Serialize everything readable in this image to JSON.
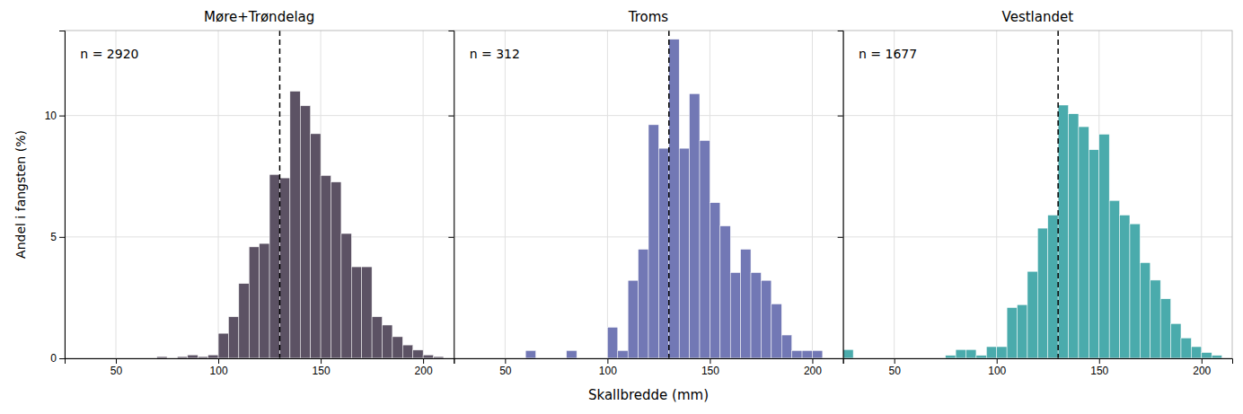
{
  "chart_data": [
    {
      "type": "histogram",
      "title": "Møre+Trøndelag",
      "annotation": "n = 2920",
      "color": "#5c5264",
      "ylabel": "Andel i fangsten (%)",
      "bins": [
        70,
        75,
        80,
        85,
        90,
        95,
        100,
        105,
        110,
        115,
        120,
        125,
        130,
        135,
        140,
        145,
        150,
        155,
        160,
        165,
        170,
        175,
        180,
        185,
        190,
        195,
        200,
        205,
        210
      ],
      "values": [
        0.07,
        0.0,
        0.07,
        0.14,
        0.07,
        0.14,
        1.03,
        1.71,
        3.08,
        4.59,
        4.73,
        7.57,
        7.43,
        11.0,
        10.4,
        9.25,
        7.53,
        7.26,
        5.14,
        3.77,
        3.77,
        1.71,
        1.37,
        0.89,
        0.55,
        0.34,
        0.14,
        0.07
      ],
      "vline_x": 130,
      "xlim": [
        25,
        215
      ],
      "xticks": [
        50,
        100,
        150,
        200
      ],
      "ylim": [
        0,
        13.5
      ],
      "yticks": [
        0,
        5,
        10
      ],
      "grid": true
    },
    {
      "type": "histogram",
      "title": "Troms",
      "annotation": "n = 312",
      "color": "#7278b5",
      "xlabel": "Skallbredde (mm)",
      "bins": [
        60,
        65,
        70,
        75,
        80,
        85,
        90,
        95,
        100,
        105,
        110,
        115,
        120,
        125,
        130,
        135,
        140,
        145,
        150,
        155,
        160,
        165,
        170,
        175,
        180,
        185,
        190,
        195,
        200,
        205
      ],
      "values": [
        0.32,
        0.0,
        0.0,
        0.0,
        0.32,
        0.0,
        0.0,
        0.0,
        1.28,
        0.32,
        3.21,
        4.49,
        9.62,
        8.65,
        13.14,
        8.65,
        10.9,
        8.97,
        6.41,
        5.45,
        3.53,
        4.49,
        3.53,
        3.21,
        2.24,
        0.96,
        0.32,
        0.32,
        0.32
      ],
      "vline_x": 130,
      "xlim": [
        25,
        215
      ],
      "xticks": [
        50,
        100,
        150,
        200
      ],
      "ylim": [
        0,
        13.5
      ],
      "yticks": [
        0,
        5,
        10
      ],
      "grid": true,
      "tick_labels": "x"
    },
    {
      "type": "histogram",
      "title": "Vestlandet",
      "annotation": "n = 1677",
      "color": "#4aabac",
      "bins": [
        25,
        30,
        35,
        40,
        45,
        50,
        55,
        60,
        65,
        70,
        75,
        80,
        85,
        90,
        95,
        100,
        105,
        110,
        115,
        120,
        125,
        130,
        135,
        140,
        145,
        150,
        155,
        160,
        165,
        170,
        175,
        180,
        185,
        190,
        195,
        200,
        205,
        210
      ],
      "values": [
        0.36,
        0.0,
        0.0,
        0.0,
        0.0,
        0.0,
        0.0,
        0.0,
        0.0,
        0.0,
        0.12,
        0.36,
        0.36,
        0.12,
        0.48,
        0.48,
        2.09,
        2.21,
        3.58,
        5.36,
        5.9,
        10.43,
        10.07,
        9.54,
        8.59,
        9.23,
        6.5,
        5.9,
        5.54,
        3.94,
        3.22,
        2.45,
        1.43,
        0.84,
        0.48,
        0.24,
        0.12
      ],
      "vline_x": 130,
      "xlim": [
        25,
        215
      ],
      "xticks": [
        50,
        100,
        150,
        200
      ],
      "ylim": [
        0,
        13.5
      ],
      "yticks": [
        0,
        5,
        10
      ],
      "grid": true,
      "tick_labels": "x"
    }
  ]
}
